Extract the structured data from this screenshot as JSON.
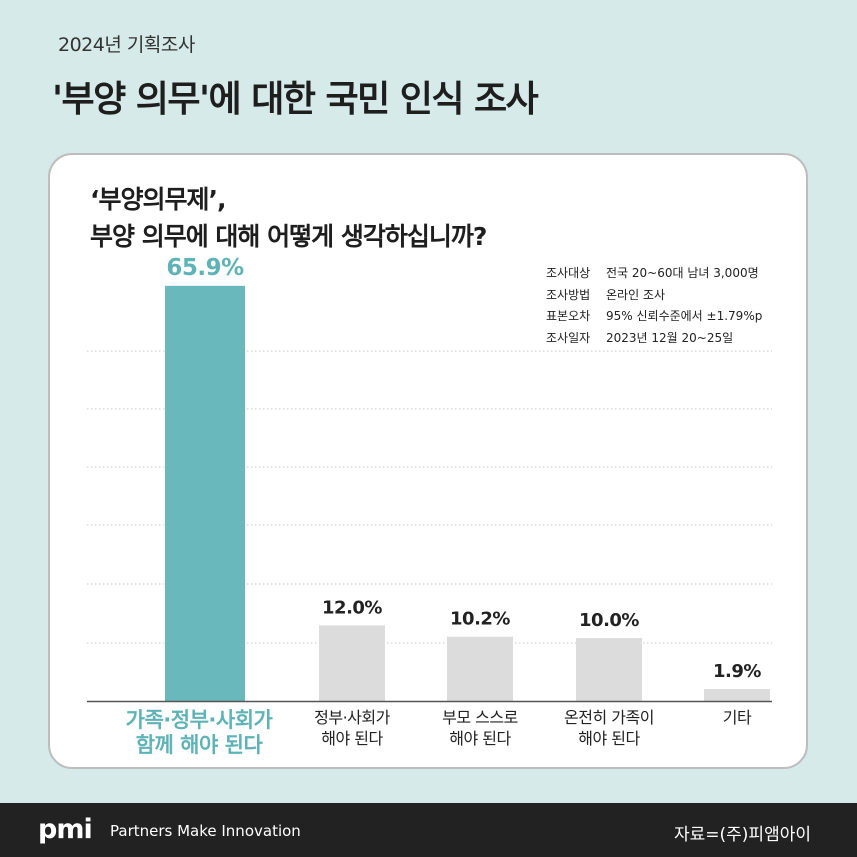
{
  "header": {
    "kicker": "2024년 기획조사",
    "title": "'부양 의무'에 대한 국민 인식 조사"
  },
  "question": {
    "line1": "‘부양의무제’,",
    "line2": "부양 의무에 대해 어떻게 생각하십니까?"
  },
  "survey_info": [
    {
      "key": "조사대상",
      "value": "전국 20~60대 남녀 3,000명"
    },
    {
      "key": "조사방법",
      "value": "온라인 조사"
    },
    {
      "key": "표본오차",
      "value": "95% 신뢰수준에서 ±1.79%p"
    },
    {
      "key": "조사일자",
      "value": "2023년 12월 20~25일"
    }
  ],
  "chart_data": {
    "type": "bar",
    "categories": [
      [
        "가족·정부·사회가",
        "함께 해야 된다"
      ],
      [
        "정부·사회가",
        "해야 된다"
      ],
      [
        "부모 스스로",
        "해야 된다"
      ],
      [
        "온전히 가족이",
        "해야 된다"
      ],
      [
        "기타"
      ]
    ],
    "values": [
      65.9,
      12.0,
      10.2,
      10.0,
      1.9
    ],
    "value_labels": [
      "65.9%",
      "12.0%",
      "10.2%",
      "10.0%",
      "1.9%"
    ],
    "ylim": [
      0,
      70
    ],
    "grid": true,
    "highlight_index": 0,
    "colors": {
      "highlight": "#69b9bc",
      "default": "#dcdcdc",
      "highlight_text": "#5fb3b6",
      "default_text": "#222222"
    }
  },
  "footer": {
    "logo": "pmi",
    "tagline": "Partners Make Innovation",
    "source": "자료=(주)피앰아이"
  }
}
